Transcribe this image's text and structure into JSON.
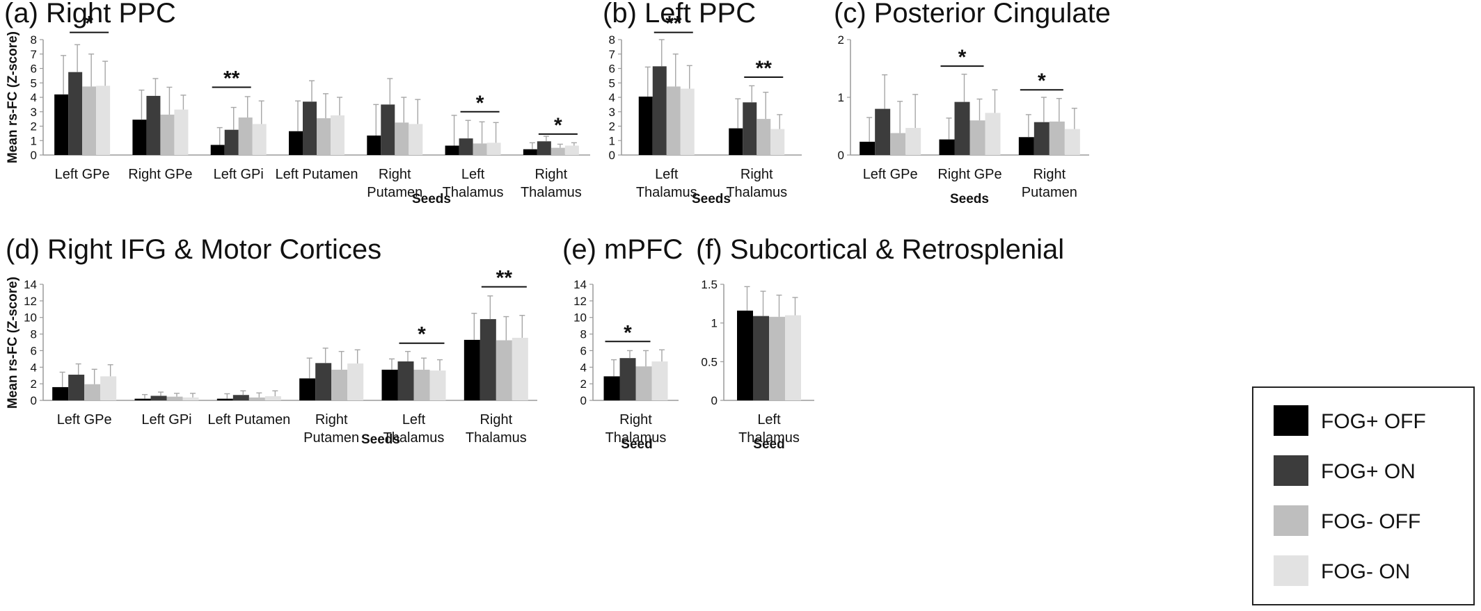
{
  "chart_data": [
    {
      "id": "a",
      "type": "bar",
      "title": "(a) Right PPC",
      "ylabel": "Mean rs-FC (Z-score)",
      "xlabel": "Seeds",
      "ylim": [
        0,
        8
      ],
      "yticks": [
        0,
        1,
        2,
        3,
        4,
        5,
        6,
        7,
        8
      ],
      "categories": [
        [
          "Left GPe"
        ],
        [
          "Right GPe"
        ],
        [
          "Left GPi"
        ],
        [
          "Left Putamen"
        ],
        [
          "Right",
          "Putamen"
        ],
        [
          "Left",
          "Thalamus"
        ],
        [
          "Right",
          "Thalamus"
        ]
      ],
      "series": [
        {
          "name": "FOG+ OFF",
          "values": [
            4.2,
            2.45,
            0.7,
            1.65,
            1.35,
            0.65,
            0.4
          ],
          "errors": [
            2.7,
            2.05,
            1.2,
            2.1,
            2.15,
            2.1,
            0.45
          ]
        },
        {
          "name": "FOG+ ON",
          "values": [
            5.75,
            4.1,
            1.75,
            3.7,
            3.5,
            1.15,
            0.95
          ],
          "errors": [
            1.9,
            1.2,
            1.55,
            1.45,
            1.8,
            1.25,
            0.35
          ]
        },
        {
          "name": "FOG- OFF",
          "values": [
            4.75,
            2.8,
            2.6,
            2.55,
            2.25,
            0.8,
            0.5
          ],
          "errors": [
            2.25,
            1.9,
            1.45,
            1.7,
            1.75,
            1.5,
            0.25
          ]
        },
        {
          "name": "FOG- ON",
          "values": [
            4.8,
            3.15,
            2.15,
            2.75,
            2.15,
            0.85,
            0.65
          ],
          "errors": [
            1.7,
            1.0,
            1.6,
            1.25,
            1.7,
            1.4,
            0.2
          ]
        }
      ],
      "annotations": [
        {
          "category": 0,
          "from_series": 1,
          "to_series": 3,
          "level": 8.5,
          "text": "*"
        },
        {
          "category": 2,
          "from_series": 0,
          "to_series": 2,
          "level": 4.7,
          "text": "**"
        },
        {
          "category": 5,
          "from_series": 1,
          "to_series": 3,
          "level": 3.0,
          "text": "*"
        },
        {
          "category": 6,
          "from_series": 1,
          "to_series": 3,
          "level": 1.45,
          "text": "*"
        }
      ],
      "legend": "none"
    },
    {
      "id": "b",
      "type": "bar",
      "title": "(b) Left PPC",
      "ylabel": "",
      "xlabel": "Seeds",
      "ylim": [
        0,
        8
      ],
      "yticks": [
        0,
        1,
        2,
        3,
        4,
        5,
        6,
        7,
        8
      ],
      "categories": [
        [
          "Left",
          "Thalamus"
        ],
        [
          "Right",
          "Thalamus"
        ]
      ],
      "series": [
        {
          "name": "FOG+ OFF",
          "values": [
            4.05,
            1.85
          ],
          "errors": [
            2.05,
            2.05
          ]
        },
        {
          "name": "FOG+ ON",
          "values": [
            6.15,
            3.65
          ],
          "errors": [
            1.85,
            1.15
          ]
        },
        {
          "name": "FOG- OFF",
          "values": [
            4.75,
            2.5
          ],
          "errors": [
            2.25,
            1.85
          ]
        },
        {
          "name": "FOG- ON",
          "values": [
            4.6,
            1.8
          ],
          "errors": [
            1.6,
            1.0
          ]
        }
      ],
      "annotations": [
        {
          "category": 0,
          "from_series": 1,
          "to_series": 3,
          "level": 8.5,
          "text": "**"
        },
        {
          "category": 1,
          "from_series": 1,
          "to_series": 3,
          "level": 5.4,
          "text": "**"
        }
      ],
      "legend": "none"
    },
    {
      "id": "c",
      "type": "bar",
      "title": "(c) Posterior Cingulate",
      "ylabel": "",
      "xlabel": "Seeds",
      "ylim": [
        0,
        2
      ],
      "yticks": [
        0,
        1,
        2
      ],
      "categories": [
        [
          "Left GPe"
        ],
        [
          "Right GPe"
        ],
        [
          "Right",
          "Putamen"
        ]
      ],
      "series": [
        {
          "name": "FOG+ OFF",
          "values": [
            0.23,
            0.27,
            0.31
          ],
          "errors": [
            0.42,
            0.37,
            0.39
          ]
        },
        {
          "name": "FOG+ ON",
          "values": [
            0.8,
            0.92,
            0.57
          ],
          "errors": [
            0.59,
            0.48,
            0.43
          ]
        },
        {
          "name": "FOG- OFF",
          "values": [
            0.38,
            0.6,
            0.58
          ],
          "errors": [
            0.55,
            0.37,
            0.4
          ]
        },
        {
          "name": "FOG- ON",
          "values": [
            0.47,
            0.73,
            0.45
          ],
          "errors": [
            0.58,
            0.4,
            0.36
          ]
        }
      ],
      "annotations": [
        {
          "category": 1,
          "from_series": 0,
          "to_series": 2,
          "level": 1.54,
          "text": "*"
        },
        {
          "category": 2,
          "from_series": 0,
          "to_series": 2,
          "level": 1.13,
          "text": "*"
        }
      ],
      "legend": "none"
    },
    {
      "id": "d",
      "type": "bar",
      "title": "(d) Right IFG & Motor Cortices",
      "ylabel": "Mean rs-FC (Z-score)",
      "xlabel": "Seeds",
      "ylim": [
        0,
        14
      ],
      "yticks": [
        0,
        2,
        4,
        6,
        8,
        10,
        12,
        14
      ],
      "categories": [
        [
          "Left GPe"
        ],
        [
          "Left GPi"
        ],
        [
          "Left Putamen"
        ],
        [
          "Right",
          "Putamen"
        ],
        [
          "Left",
          "Thalamus"
        ],
        [
          "Right",
          "Thalamus"
        ]
      ],
      "series": [
        {
          "name": "FOG+ OFF",
          "values": [
            1.6,
            0.2,
            0.2,
            2.65,
            3.7,
            7.3
          ],
          "errors": [
            1.8,
            0.5,
            0.6,
            2.45,
            1.3,
            3.2
          ]
        },
        {
          "name": "FOG+ ON",
          "values": [
            3.1,
            0.55,
            0.65,
            4.5,
            4.7,
            9.8
          ],
          "errors": [
            1.3,
            0.45,
            0.5,
            1.8,
            1.2,
            2.8
          ]
        },
        {
          "name": "FOG- OFF",
          "values": [
            1.95,
            0.45,
            0.35,
            3.7,
            3.7,
            7.25
          ],
          "errors": [
            1.8,
            0.4,
            0.55,
            2.2,
            1.4,
            2.85
          ]
        },
        {
          "name": "FOG- ON",
          "values": [
            2.9,
            0.35,
            0.5,
            4.45,
            3.6,
            7.55
          ],
          "errors": [
            1.4,
            0.5,
            0.65,
            1.65,
            1.3,
            2.7
          ]
        }
      ],
      "annotations": [
        {
          "category": 4,
          "from_series": 1,
          "to_series": 3,
          "level": 6.9,
          "text": "*"
        },
        {
          "category": 5,
          "from_series": 1,
          "to_series": 3,
          "level": 13.7,
          "text": "**"
        }
      ],
      "legend": "none"
    },
    {
      "id": "e",
      "type": "bar",
      "title": "(e) mPFC",
      "ylabel": "",
      "xlabel": "Seed",
      "ylim": [
        0,
        14
      ],
      "yticks": [
        0,
        2,
        4,
        6,
        8,
        10,
        12,
        14
      ],
      "categories": [
        [
          "Right",
          "Thalamus"
        ]
      ],
      "series": [
        {
          "name": "FOG+ OFF",
          "values": [
            2.9
          ],
          "errors": [
            2.0
          ]
        },
        {
          "name": "FOG+ ON",
          "values": [
            5.1
          ],
          "errors": [
            0.9
          ]
        },
        {
          "name": "FOG- OFF",
          "values": [
            4.1
          ],
          "errors": [
            1.9
          ]
        },
        {
          "name": "FOG- ON",
          "values": [
            4.7
          ],
          "errors": [
            1.4
          ]
        }
      ],
      "annotations": [
        {
          "category": 0,
          "from_series": 0,
          "to_series": 2,
          "level": 7.1,
          "text": "*"
        }
      ],
      "legend": "none"
    },
    {
      "id": "f",
      "type": "bar",
      "title": "(f) Subcortical & Retrosplenial",
      "ylabel": "",
      "xlabel": "Seed",
      "ylim": [
        0,
        1.5
      ],
      "yticks": [
        0,
        0.5,
        1,
        1.5
      ],
      "categories": [
        [
          "Left",
          "Thalamus"
        ]
      ],
      "series": [
        {
          "name": "FOG+ OFF",
          "values": [
            1.16
          ],
          "errors": [
            0.31
          ]
        },
        {
          "name": "FOG+ ON",
          "values": [
            1.09
          ],
          "errors": [
            0.32
          ]
        },
        {
          "name": "FOG- OFF",
          "values": [
            1.08
          ],
          "errors": [
            0.28
          ]
        },
        {
          "name": "FOG- ON",
          "values": [
            1.1
          ],
          "errors": [
            0.23
          ]
        }
      ],
      "annotations": [],
      "legend": "right"
    }
  ],
  "legend": {
    "items": [
      {
        "name": "FOG+ OFF",
        "color": "#000000"
      },
      {
        "name": "FOG+ ON",
        "color": "#3c3c3c"
      },
      {
        "name": "FOG- OFF",
        "color": "#bebebe"
      },
      {
        "name": "FOG- ON",
        "color": "#e2e2e2"
      }
    ]
  },
  "colors": {
    "error_bar": "#a6a6a6",
    "axis": "#9a9a9a",
    "text": "#111111"
  }
}
